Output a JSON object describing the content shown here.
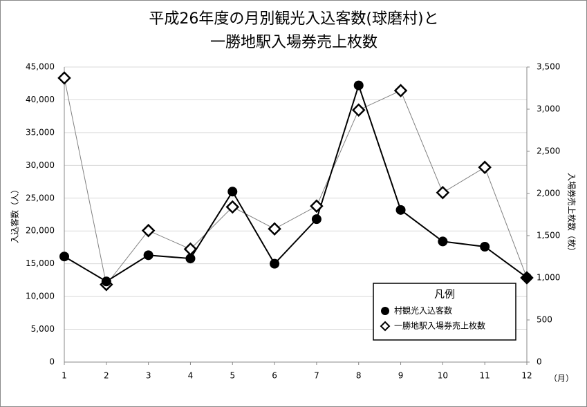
{
  "chart_data": {
    "type": "line",
    "title": [
      "平成26年度の月別観光入込客数(球磨村)と",
      "一勝地駅入場券売上枚数"
    ],
    "y_label": "入込客数（人）",
    "y2_label": "入場券売上枚数（枚）",
    "x_unit": "（月）",
    "x": [
      1,
      2,
      3,
      4,
      5,
      6,
      7,
      8,
      9,
      10,
      11,
      12
    ],
    "xlim": [
      1,
      12
    ],
    "xticks": [
      1,
      2,
      3,
      4,
      5,
      6,
      7,
      8,
      9,
      10,
      11,
      12
    ],
    "ylim": [
      0,
      45000
    ],
    "yticks": [
      0,
      {
        "value": 5000,
        "label": "5,000"
      },
      {
        "value": 10000,
        "label": "10,000"
      },
      {
        "value": 15000,
        "label": "15,000"
      },
      {
        "value": 20000,
        "label": "20,000"
      },
      {
        "value": 25000,
        "label": "25,000"
      },
      {
        "value": 30000,
        "label": "30,000"
      },
      {
        "value": 35000,
        "label": "35,000"
      },
      {
        "value": 40000,
        "label": "40,000"
      },
      {
        "value": 45000,
        "label": "45,000"
      }
    ],
    "y2lim": [
      0,
      3500
    ],
    "y2ticks": [
      0,
      500,
      {
        "value": 1000,
        "label": "1,000"
      },
      {
        "value": 1500,
        "label": "1,500"
      },
      {
        "value": 2000,
        "label": "2,000"
      },
      {
        "value": 2500,
        "label": "2,500"
      },
      {
        "value": 3000,
        "label": "3,000"
      },
      {
        "value": 3500,
        "label": "3,500"
      }
    ],
    "grid": true,
    "legend": {
      "title": "凡例",
      "position": "lower right"
    },
    "series": [
      {
        "name": "村観光入込客数",
        "color": "#000000",
        "marker": "circle",
        "values": [
          16100,
          12300,
          16300,
          15800,
          26000,
          15000,
          21800,
          42200,
          23200,
          18400,
          17600,
          12900
        ]
      },
      {
        "name": "一勝地駅入場券売上枚数",
        "color": "#808080",
        "marker": "diamond",
        "axis": "y2",
        "values": [
          3370,
          920,
          1560,
          1340,
          1840,
          1580,
          1850,
          2990,
          3220,
          2010,
          2310,
          1000
        ]
      }
    ]
  }
}
